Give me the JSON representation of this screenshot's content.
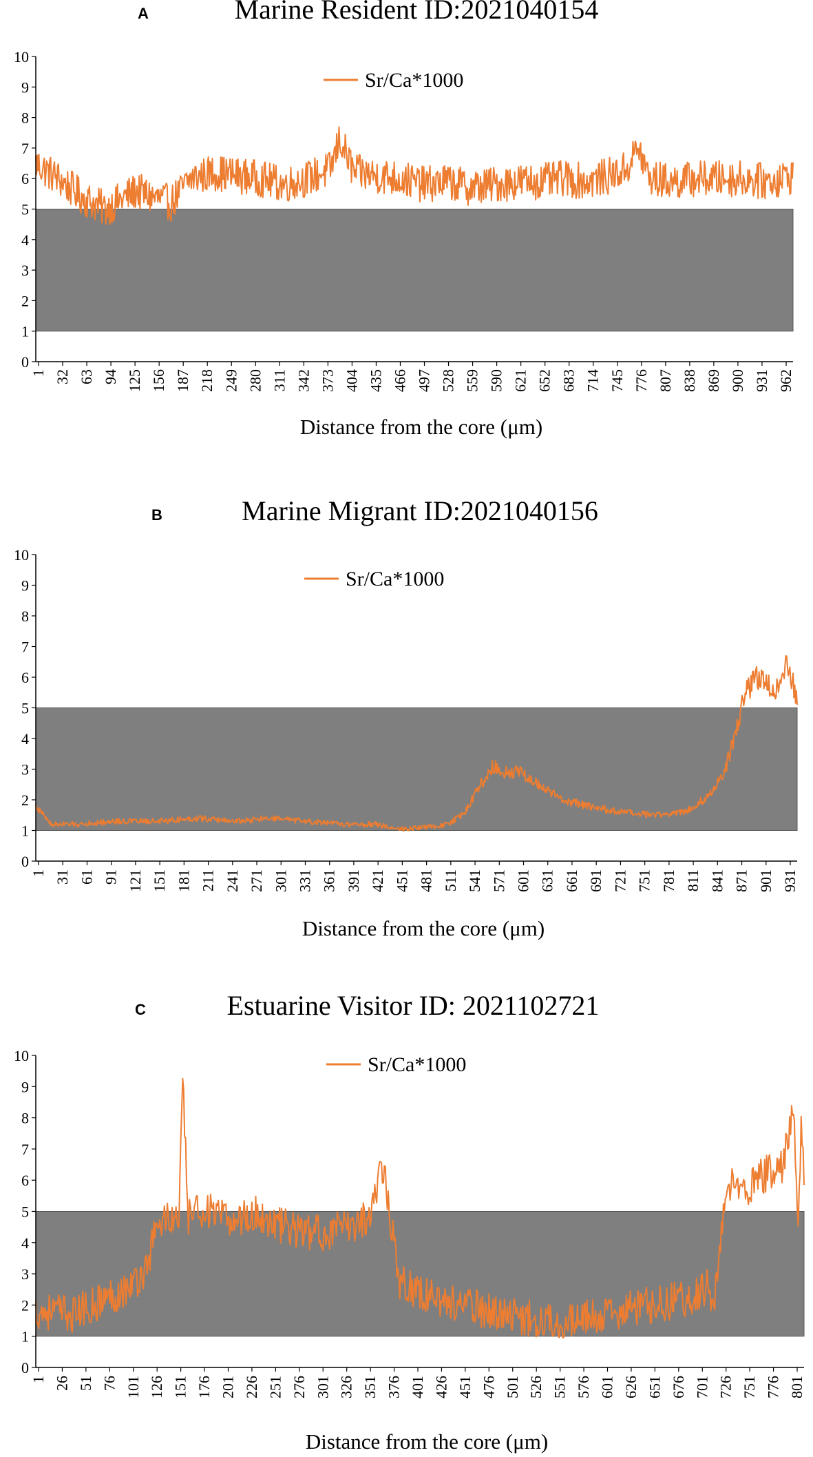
{
  "figure": {
    "panels": [
      {
        "letter": "A"
      },
      {
        "letter": "B"
      },
      {
        "letter": "C"
      }
    ]
  },
  "colors": {
    "line": "#ed7d31",
    "band": "#7f7f7f",
    "band_opacity": 0.82,
    "axis": "#000000"
  },
  "chart_data": [
    {
      "type": "line",
      "title": "Marine Resident ID:2021040154",
      "xlabel": "Distance from the core (μm)",
      "ylabel": "",
      "ylim": [
        0,
        10
      ],
      "yticks": [
        0,
        1,
        2,
        3,
        4,
        5,
        6,
        7,
        8,
        9,
        10
      ],
      "x_range": [
        1,
        975
      ],
      "x_tick_labels": [
        "1",
        "32",
        "63",
        "94",
        "125",
        "156",
        "187",
        "218",
        "249",
        "280",
        "311",
        "342",
        "373",
        "404",
        "435",
        "466",
        "497",
        "528",
        "559",
        "590",
        "621",
        "652",
        "683",
        "714",
        "745",
        "776",
        "807",
        "838",
        "869",
        "900",
        "931",
        "962"
      ],
      "band": [
        1,
        5
      ],
      "legend": "Sr/Ca*1000",
      "legend_position": "top-center",
      "grid": false,
      "series": [
        {
          "name": "Sr/Ca*1000",
          "x": [
            1,
            30,
            60,
            90,
            110,
            130,
            150,
            175,
            200,
            230,
            260,
            290,
            320,
            350,
            380,
            392,
            410,
            440,
            470,
            500,
            530,
            560,
            590,
            620,
            650,
            680,
            710,
            740,
            760,
            776,
            790,
            820,
            850,
            880,
            910,
            940,
            960,
            975
          ],
          "y": [
            6.5,
            6.0,
            5.4,
            5.0,
            5.3,
            5.6,
            5.4,
            5.2,
            6.0,
            6.2,
            6.1,
            6.0,
            5.8,
            6.0,
            6.3,
            7.3,
            6.2,
            6.1,
            6.0,
            5.8,
            5.9,
            5.7,
            5.8,
            5.9,
            5.9,
            6.0,
            5.9,
            6.1,
            6.3,
            7.0,
            6.0,
            5.9,
            6.0,
            6.0,
            6.0,
            5.9,
            6.0,
            6.1
          ]
        }
      ]
    },
    {
      "type": "line",
      "title": "Marine Migrant  ID:2021040156",
      "xlabel": "Distance from the core (μm)",
      "ylabel": "",
      "ylim": [
        0,
        10
      ],
      "yticks": [
        0,
        1,
        2,
        3,
        4,
        5,
        6,
        7,
        8,
        9,
        10
      ],
      "x_range": [
        1,
        940
      ],
      "x_tick_labels": [
        "1",
        "31",
        "61",
        "91",
        "121",
        "151",
        "181",
        "211",
        "241",
        "271",
        "301",
        "331",
        "361",
        "391",
        "421",
        "451",
        "481",
        "511",
        "541",
        "571",
        "601",
        "631",
        "661",
        "691",
        "721",
        "751",
        "781",
        "811",
        "841",
        "871",
        "901",
        "931"
      ],
      "band": [
        1,
        5
      ],
      "legend": "Sr/Ca*1000",
      "legend_position": "top-center",
      "grid": false,
      "series": [
        {
          "name": "Sr/Ca*1000",
          "x": [
            1,
            20,
            50,
            100,
            150,
            200,
            250,
            290,
            330,
            380,
            420,
            450,
            480,
            510,
            530,
            550,
            565,
            580,
            600,
            620,
            650,
            680,
            720,
            760,
            800,
            830,
            850,
            865,
            875,
            890,
            905,
            915,
            925,
            935,
            940
          ],
          "y": [
            1.8,
            1.2,
            1.2,
            1.3,
            1.3,
            1.4,
            1.3,
            1.4,
            1.3,
            1.2,
            1.2,
            1.05,
            1.1,
            1.2,
            1.6,
            2.5,
            3.1,
            2.9,
            2.9,
            2.5,
            2.0,
            1.8,
            1.6,
            1.5,
            1.6,
            2.1,
            2.9,
            4.2,
            5.5,
            6.0,
            5.7,
            5.6,
            6.5,
            5.8,
            5.3
          ]
        }
      ]
    },
    {
      "type": "line",
      "title": "Estuarine Visitor ID: 2021102721",
      "xlabel": "Distance from the core (μm)",
      "ylabel": "",
      "ylim": [
        0,
        10
      ],
      "yticks": [
        0,
        1,
        2,
        3,
        4,
        5,
        6,
        7,
        8,
        9,
        10
      ],
      "x_range": [
        1,
        801
      ],
      "x_tick_labels": [
        "1",
        "26",
        "51",
        "76",
        "101",
        "126",
        "151",
        "176",
        "201",
        "226",
        "251",
        "276",
        "301",
        "326",
        "351",
        "376",
        "401",
        "426",
        "451",
        "476",
        "501",
        "526",
        "551",
        "576",
        "601",
        "626",
        "651",
        "676",
        "701",
        "726",
        "751",
        "776",
        "801"
      ],
      "band": [
        1,
        5
      ],
      "legend": "Sr/Ca*1000",
      "legend_position": "top-center",
      "grid": false,
      "series": [
        {
          "name": "Sr/Ca*1000",
          "x": [
            1,
            20,
            40,
            60,
            80,
            100,
            115,
            125,
            135,
            150,
            154,
            160,
            175,
            200,
            230,
            260,
            290,
            320,
            345,
            355,
            360,
            370,
            380,
            400,
            430,
            460,
            490,
            520,
            560,
            600,
            640,
            680,
            700,
            708,
            715,
            725,
            740,
            760,
            780,
            790,
            795,
            798,
            801
          ],
          "y": [
            1.8,
            1.8,
            1.7,
            2.0,
            2.3,
            2.6,
            3.1,
            4.3,
            4.8,
            4.7,
            9.0,
            4.8,
            5.1,
            4.7,
            4.9,
            4.5,
            4.3,
            4.4,
            4.8,
            5.5,
            6.8,
            4.9,
            2.8,
            2.4,
            2.1,
            1.9,
            1.7,
            1.55,
            1.5,
            1.7,
            2.0,
            2.2,
            2.6,
            2.1,
            4.4,
            5.9,
            5.6,
            6.2,
            6.5,
            8.5,
            4.8,
            7.6,
            6.0
          ]
        }
      ]
    }
  ]
}
